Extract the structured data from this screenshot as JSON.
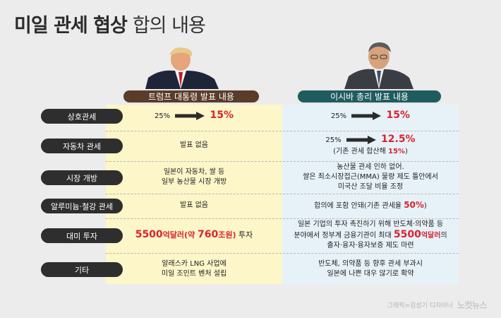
{
  "title": {
    "bold": "미일 관세 협상",
    "light": "합의 내용"
  },
  "columns": {
    "left": "트럼프 대통령 발표 내용",
    "right": "이시바 총리 발표 내용"
  },
  "rows": [
    {
      "label": "상호관세",
      "left": {
        "from": "25%",
        "to": "15%"
      },
      "right": {
        "from": "25%",
        "to": "15%"
      }
    },
    {
      "label": "자동차 관세",
      "left": {
        "text": "발표 없음"
      },
      "right": {
        "from": "25%",
        "to": "12.5%",
        "note_pre": "(기존 관세 합산해 ",
        "note_red": "15%",
        "note_post": ")"
      }
    },
    {
      "label": "시장 개방",
      "left": {
        "line1": "일본이 자동차, 쌀 등",
        "line2": "일부 농산물 시장 개방"
      },
      "right": {
        "line1": "농산물 관세 인하 없어.",
        "line2": "쌀은 최소시장접근(MMA) 물량 제도 틀안에서",
        "line3": "미국산 조달 비율 조정"
      }
    },
    {
      "label": "알루미늄·철강 관세",
      "left": {
        "text": "발표 없음"
      },
      "right": {
        "pre": "합의에 포함 안돼(기존 관세율 ",
        "red": "50%",
        "post": ")"
      }
    },
    {
      "label": "대미 투자",
      "left": {
        "red1": "5500",
        "mid1": "억달러(약 ",
        "red2": "760",
        "mid2": "조원)",
        "post": " 투자"
      },
      "right": {
        "line1": "일본 기업의 투자 촉진하기 위해 반도체·의약품 등",
        "line2_pre": "분야에서 정부계 금융기관이 최대 ",
        "line2_red": "5500",
        "line2_mid": "억달러",
        "line2_post": "의",
        "line3": "출자·융자·융자보증 제도 마련"
      }
    },
    {
      "label": "기타",
      "left": {
        "line1": "알래스카 LNG 사업에",
        "line2": "미일 조인트 벤처 설립"
      },
      "right": {
        "line1": "반도체, 의약품 등 향후 관세 부과시",
        "line2": "일본에 나쁜 대우 않기로 확약"
      }
    }
  ],
  "credit": {
    "text": "그래픽=김성기 디자이너",
    "logo": "노컷뉴스"
  },
  "colors": {
    "accent_red": "#d9232e",
    "left_header": "#5a3c2a",
    "right_header": "#1f5c5e",
    "left_panel": "#fcf6c8",
    "right_panel": "#e7f2f8",
    "row_label": "#2e2e2e"
  }
}
